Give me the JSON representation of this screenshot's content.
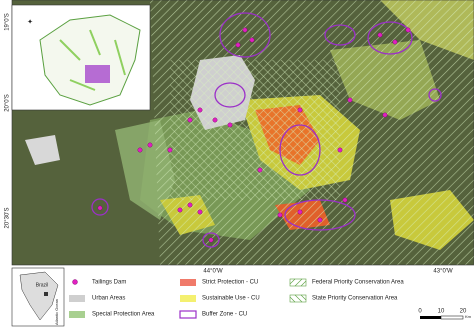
{
  "axes": {
    "lat_labels": [
      "19°0'S",
      "20°0'S",
      "20°30'S"
    ],
    "lon_labels": [
      "44°0'W",
      "43°0'W"
    ]
  },
  "inset": {
    "locator_label": "Brazil",
    "ocean_label": "Atlantic Ocean"
  },
  "legend": {
    "items": [
      "Tailings Dam",
      "Urban Areas",
      "Special Protection Area",
      "Strict Protection - CU",
      "Sustainable Use - CU",
      "Buffer Zone - CU",
      "Federal Priority Conservation Area",
      "State Priority Conservation Area"
    ]
  },
  "scale_bar": {
    "ticks": [
      "0",
      "10",
      "20"
    ],
    "unit": "Km"
  }
}
